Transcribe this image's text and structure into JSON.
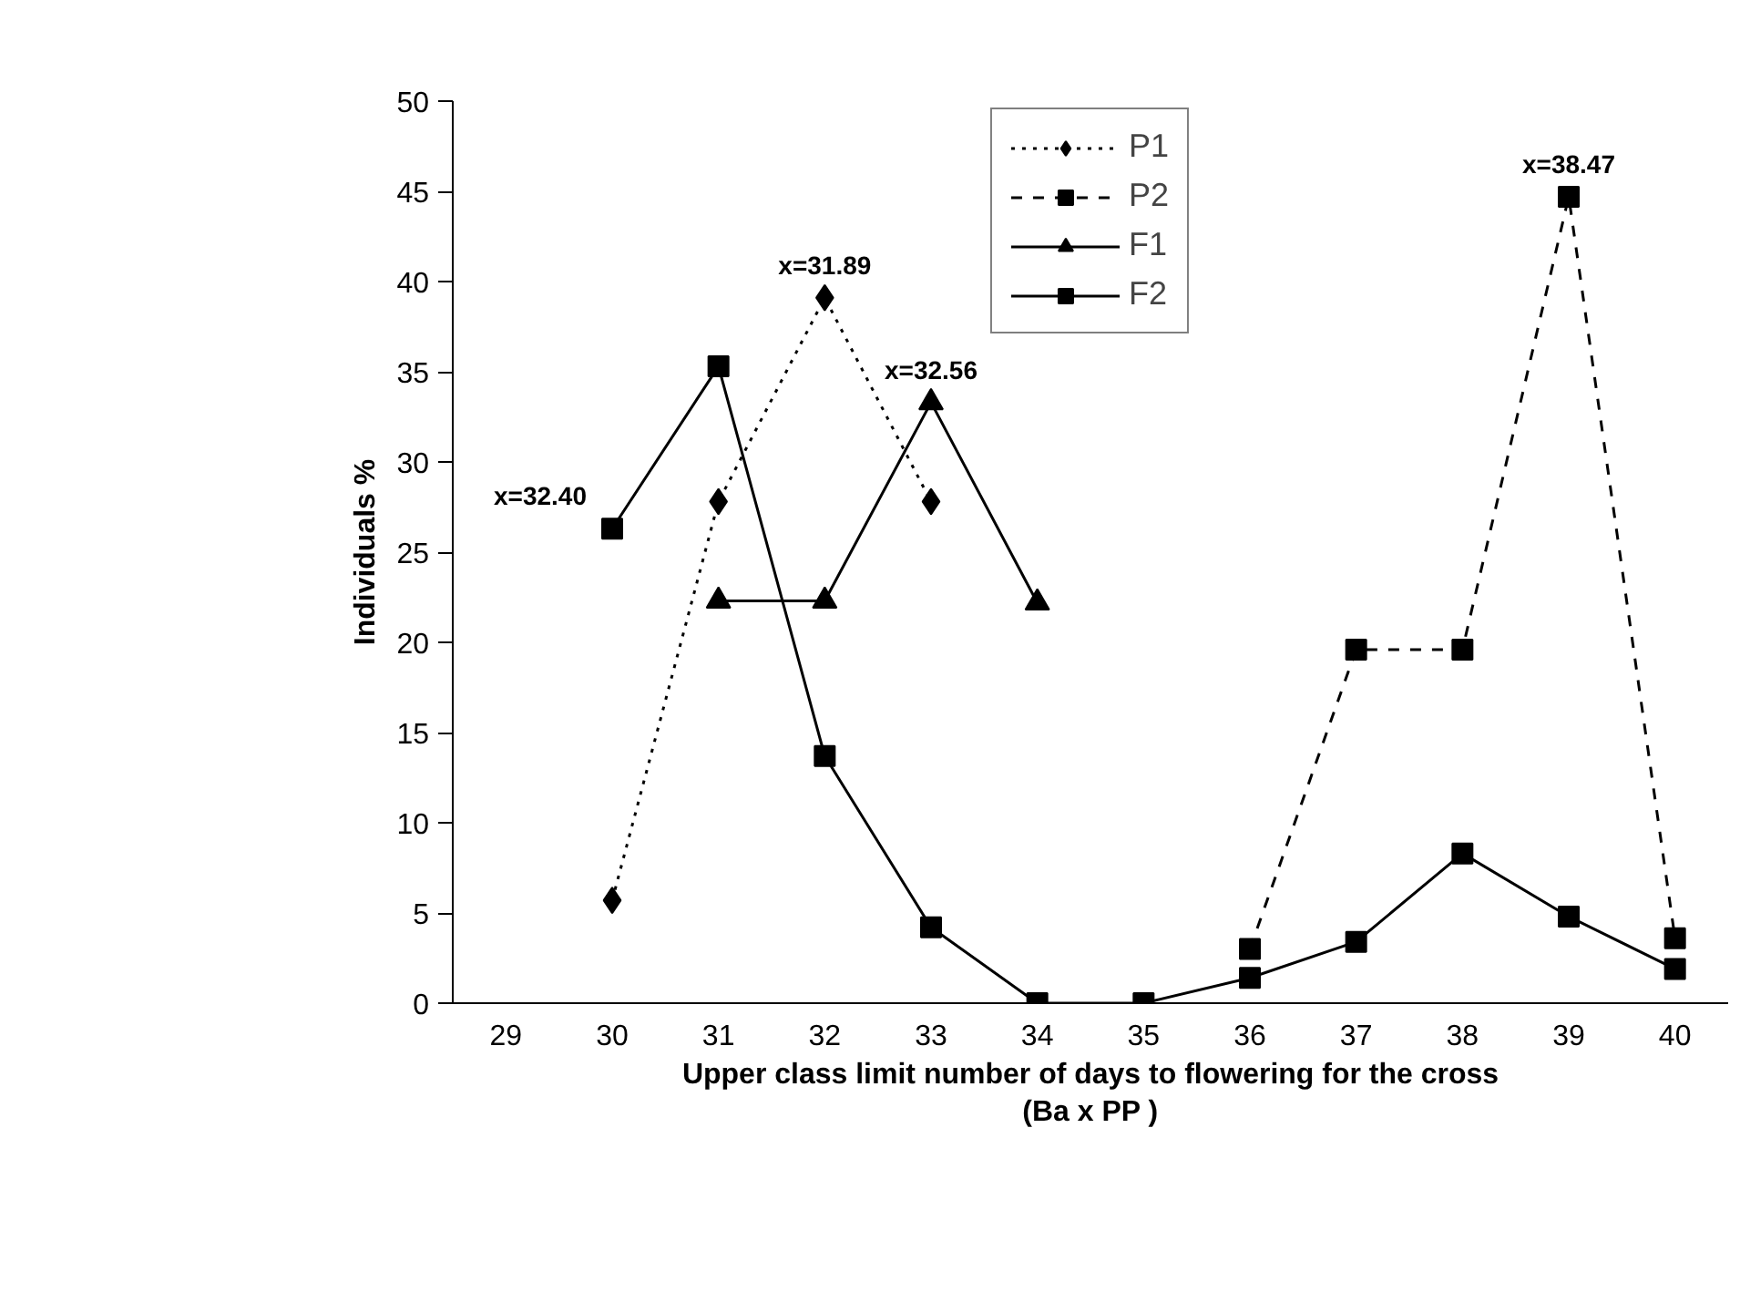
{
  "chart_data": {
    "type": "line",
    "xlabel": "Upper class limit number of days to flowering for the cross\n(Ba x PP )",
    "ylabel": "Individuals %",
    "categories": [
      "29",
      "30",
      "31",
      "32",
      "33",
      "34",
      "35",
      "36",
      "37",
      "38",
      "39",
      "40"
    ],
    "ylim": [
      0,
      50
    ],
    "yticks": [
      0,
      5,
      10,
      15,
      20,
      25,
      30,
      35,
      40,
      45,
      50
    ],
    "grid": false,
    "legend": "top",
    "series": [
      {
        "name": "P1",
        "color": "#000000",
        "marker": "diamond",
        "line_style": "dotted",
        "values": [
          null,
          5.7,
          27.8,
          39.1,
          27.8,
          null,
          null,
          null,
          null,
          null,
          null,
          null
        ]
      },
      {
        "name": "P2",
        "color": "#000000",
        "marker": "square",
        "line_style": "dashed",
        "values": [
          null,
          null,
          null,
          null,
          null,
          null,
          null,
          3.0,
          19.6,
          19.6,
          44.7,
          3.6
        ]
      },
      {
        "name": "F1",
        "color": "#000000",
        "marker": "triangle",
        "line_style": "solid",
        "values": [
          null,
          null,
          22.3,
          22.3,
          33.3,
          22.2,
          null,
          null,
          null,
          null,
          null,
          null
        ]
      },
      {
        "name": "F2",
        "color": "#000000",
        "marker": "square",
        "line_style": "solid",
        "values": [
          null,
          26.3,
          35.3,
          13.7,
          4.2,
          0,
          0,
          1.4,
          3.4,
          8.3,
          4.8,
          1.9
        ]
      }
    ],
    "annotations": [
      {
        "text": "x=32.40",
        "x": "30",
        "y": 26.3
      },
      {
        "text": "x=31.89",
        "x": "32",
        "y": 39.1
      },
      {
        "text": "x=32.56",
        "x": "33",
        "y": 33.3
      },
      {
        "text": "x=38.47",
        "x": "39",
        "y": 44.7
      }
    ]
  }
}
